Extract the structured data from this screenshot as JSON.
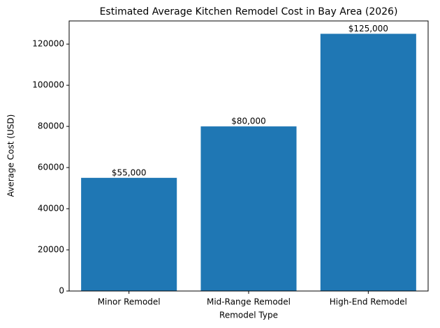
{
  "chart_data": {
    "type": "bar",
    "title": "Estimated Average Kitchen Remodel Cost in Bay Area (2026)",
    "x_label": "Remodel Type",
    "y_label": "Average Cost (USD)",
    "categories": [
      "Minor Remodel",
      "Mid-Range Remodel",
      "High-End Remodel"
    ],
    "values": [
      55000,
      80000,
      125000
    ],
    "value_labels": [
      "$55,000",
      "$80,000",
      "$125,000"
    ],
    "color": "#1f77b4",
    "ylim": [
      0,
      131250
    ],
    "yticks": [
      0,
      20000,
      40000,
      60000,
      80000,
      100000,
      120000
    ]
  }
}
